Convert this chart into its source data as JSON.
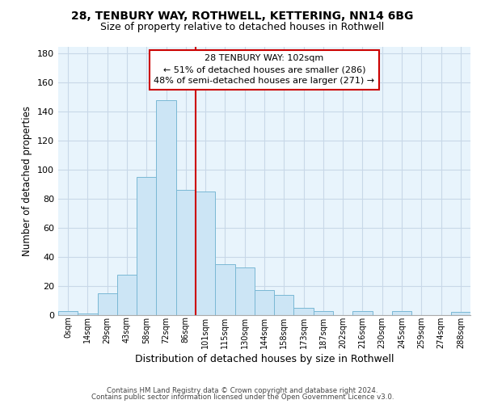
{
  "title1": "28, TENBURY WAY, ROTHWELL, KETTERING, NN14 6BG",
  "title2": "Size of property relative to detached houses in Rothwell",
  "xlabel": "Distribution of detached houses by size in Rothwell",
  "ylabel": "Number of detached properties",
  "bar_labels": [
    "0sqm",
    "14sqm",
    "29sqm",
    "43sqm",
    "58sqm",
    "72sqm",
    "86sqm",
    "101sqm",
    "115sqm",
    "130sqm",
    "144sqm",
    "158sqm",
    "173sqm",
    "187sqm",
    "202sqm",
    "216sqm",
    "230sqm",
    "245sqm",
    "259sqm",
    "274sqm",
    "288sqm"
  ],
  "bar_values": [
    3,
    1,
    15,
    28,
    95,
    148,
    86,
    85,
    35,
    33,
    17,
    14,
    5,
    3,
    0,
    3,
    0,
    3,
    0,
    0,
    2
  ],
  "bar_color": "#cce5f5",
  "bar_edge_color": "#7ab8d4",
  "red_line_x": 6.5,
  "highlight_color": "#cc0000",
  "ylim": [
    0,
    185
  ],
  "yticks": [
    0,
    20,
    40,
    60,
    80,
    100,
    120,
    140,
    160,
    180
  ],
  "annotation_title": "28 TENBURY WAY: 102sqm",
  "annotation_line1": "← 51% of detached houses are smaller (286)",
  "annotation_line2": "48% of semi-detached houses are larger (271) →",
  "annotation_box_color": "#ffffff",
  "annotation_box_edge": "#cc0000",
  "footer1": "Contains HM Land Registry data © Crown copyright and database right 2024.",
  "footer2": "Contains public sector information licensed under the Open Government Licence v3.0.",
  "background_color": "#ffffff",
  "plot_bg_color": "#e8f4fc",
  "grid_color": "#c8d8e8",
  "title1_fontsize": 10,
  "title2_fontsize": 9
}
